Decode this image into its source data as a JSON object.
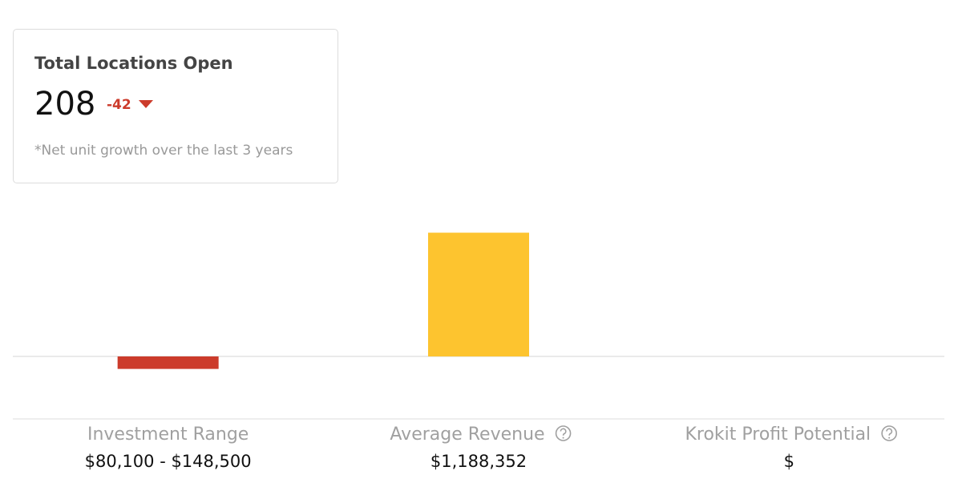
{
  "card": {
    "title": "Total Locations Open",
    "value": 208,
    "change": -42,
    "note": "*Net unit growth over the last 3 years"
  },
  "chart_data": {
    "type": "bar",
    "categories": [
      "Investment Range",
      "Average Revenue",
      "Krokit Profit Potential"
    ],
    "values": [
      -120000,
      1188352,
      null
    ],
    "details": [
      "$80,100 - $148,500",
      "$1,188,352",
      "$"
    ],
    "help": [
      false,
      true,
      true
    ],
    "colors": [
      "#cc3b2b",
      "#fdc42f",
      "#cccccc"
    ],
    "ylim": [
      -600000,
      1500000
    ]
  }
}
